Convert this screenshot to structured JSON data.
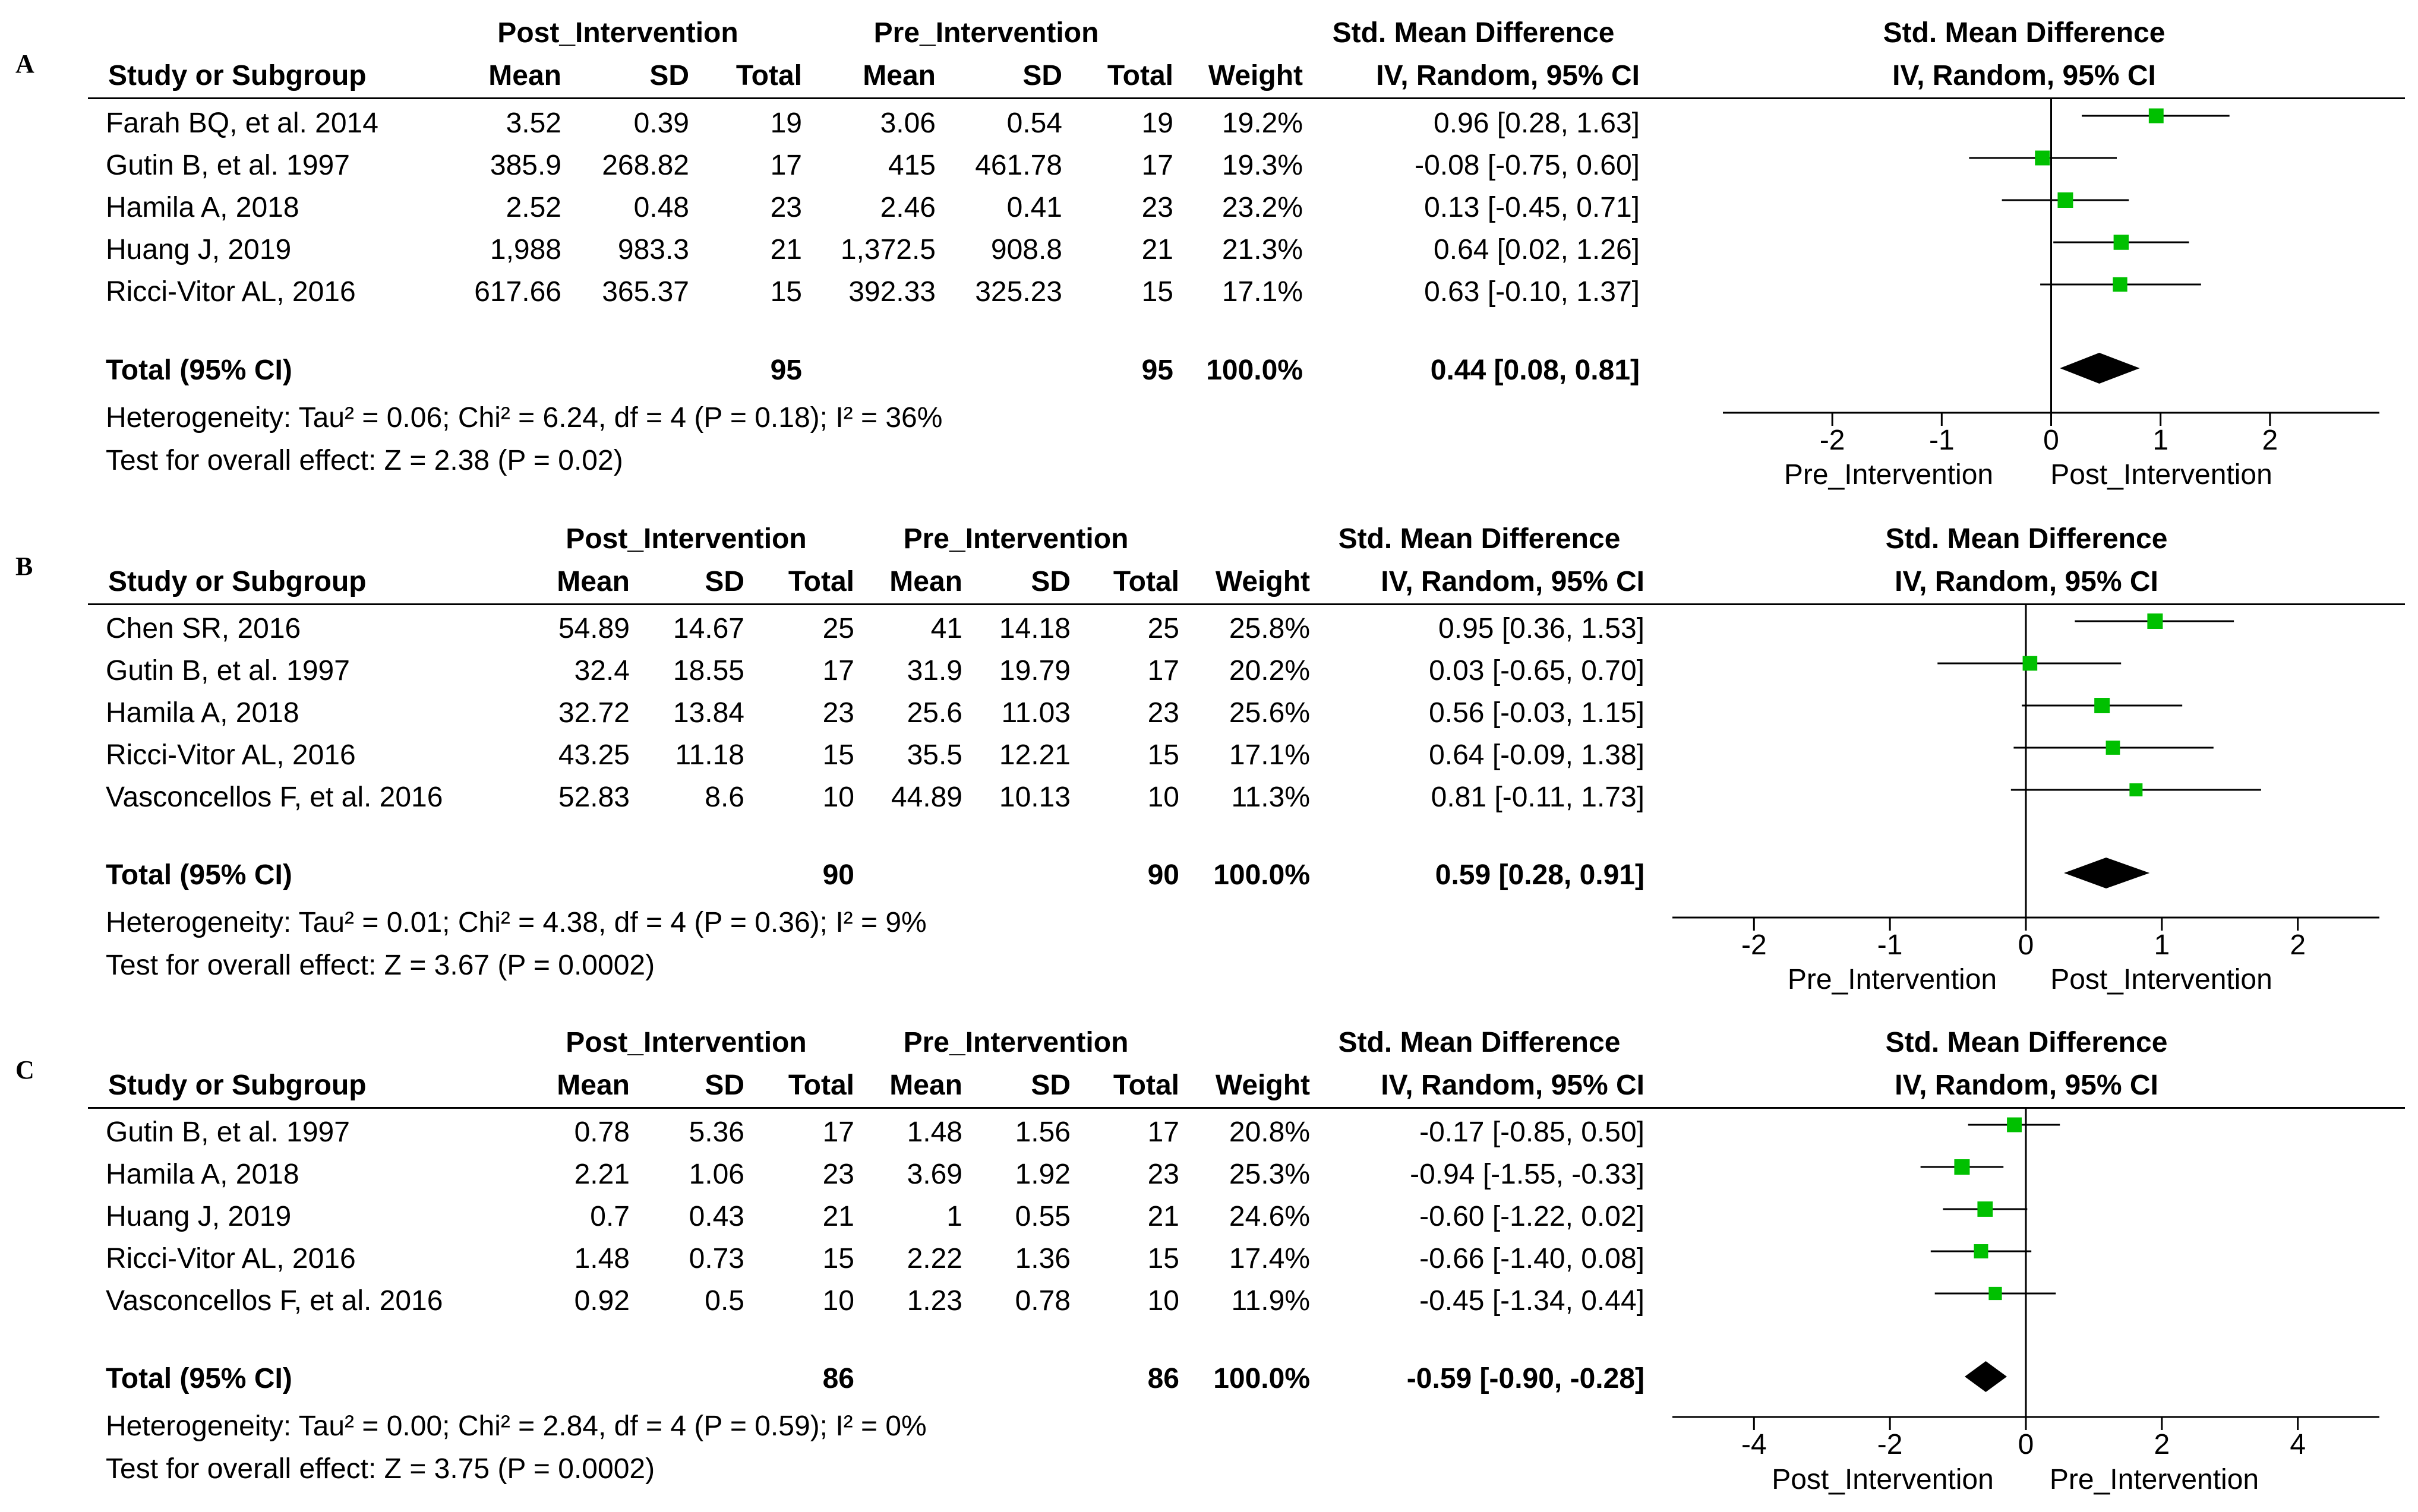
{
  "columns": {
    "study": "Study or Subgroup",
    "post_group": "Post_Intervention",
    "pre_group": "Pre_Intervention",
    "mean": "Mean",
    "sd": "SD",
    "total": "Total",
    "weight": "Weight",
    "smd_header": "Std. Mean Difference",
    "smd_method": "IV, Random, 95% CI"
  },
  "colors": {
    "marker": "#00c000",
    "diamond": "#000000",
    "line": "#000000"
  },
  "chart_data": [
    {
      "type": "table",
      "panel": "A",
      "studies": [
        {
          "name": "Farah BQ, et al. 2014",
          "post_mean": "3.52",
          "post_sd": "0.39",
          "post_total": "19",
          "pre_mean": "3.06",
          "pre_sd": "0.54",
          "pre_total": "19",
          "weight": "19.2%",
          "ci_text": "0.96 [0.28, 1.63]",
          "smd": 0.96,
          "lo": 0.28,
          "hi": 1.63,
          "w": 19.2
        },
        {
          "name": "Gutin B, et al. 1997",
          "post_mean": "385.9",
          "post_sd": "268.82",
          "post_total": "17",
          "pre_mean": "415",
          "pre_sd": "461.78",
          "pre_total": "17",
          "weight": "19.3%",
          "ci_text": "-0.08 [-0.75, 0.60]",
          "smd": -0.08,
          "lo": -0.75,
          "hi": 0.6,
          "w": 19.3
        },
        {
          "name": "Hamila A, 2018",
          "post_mean": "2.52",
          "post_sd": "0.48",
          "post_total": "23",
          "pre_mean": "2.46",
          "pre_sd": "0.41",
          "pre_total": "23",
          "weight": "23.2%",
          "ci_text": "0.13 [-0.45, 0.71]",
          "smd": 0.13,
          "lo": -0.45,
          "hi": 0.71,
          "w": 23.2
        },
        {
          "name": "Huang J, 2019",
          "post_mean": "1,988",
          "post_sd": "983.3",
          "post_total": "21",
          "pre_mean": "1,372.5",
          "pre_sd": "908.8",
          "pre_total": "21",
          "weight": "21.3%",
          "ci_text": "0.64 [0.02, 1.26]",
          "smd": 0.64,
          "lo": 0.02,
          "hi": 1.26,
          "w": 21.3
        },
        {
          "name": "Ricci-Vitor AL, 2016",
          "post_mean": "617.66",
          "post_sd": "365.37",
          "post_total": "15",
          "pre_mean": "392.33",
          "pre_sd": "325.23",
          "pre_total": "15",
          "weight": "17.1%",
          "ci_text": "0.63 [-0.10, 1.37]",
          "smd": 0.63,
          "lo": -0.1,
          "hi": 1.37,
          "w": 17.1
        }
      ],
      "total": {
        "label": "Total (95% CI)",
        "post_total": "95",
        "pre_total": "95",
        "weight": "100.0%",
        "ci_text": "0.44 [0.08, 0.81]",
        "smd": 0.44,
        "lo": 0.08,
        "hi": 0.81
      },
      "heterogeneity": "Heterogeneity: Tau² = 0.06; Chi² = 6.24, df = 4 (P = 0.18); I² = 36%",
      "overall_effect": "Test for overall effect: Z = 2.38 (P = 0.02)",
      "xlim": [
        -3,
        3
      ],
      "xticks": [
        -2,
        -1,
        0,
        1,
        2
      ],
      "xtick_labels": [
        "-2",
        "-1",
        "0",
        "1",
        "2"
      ],
      "left_label": "Pre_Intervention",
      "right_label": "Post_Intervention"
    },
    {
      "type": "table",
      "panel": "B",
      "studies": [
        {
          "name": "Chen SR, 2016",
          "post_mean": "54.89",
          "post_sd": "14.67",
          "post_total": "25",
          "pre_mean": "41",
          "pre_sd": "14.18",
          "pre_total": "25",
          "weight": "25.8%",
          "ci_text": "0.95 [0.36, 1.53]",
          "smd": 0.95,
          "lo": 0.36,
          "hi": 1.53,
          "w": 25.8
        },
        {
          "name": "Gutin B, et al. 1997",
          "post_mean": "32.4",
          "post_sd": "18.55",
          "post_total": "17",
          "pre_mean": "31.9",
          "pre_sd": "19.79",
          "pre_total": "17",
          "weight": "20.2%",
          "ci_text": "0.03 [-0.65, 0.70]",
          "smd": 0.03,
          "lo": -0.65,
          "hi": 0.7,
          "w": 20.2
        },
        {
          "name": "Hamila A, 2018",
          "post_mean": "32.72",
          "post_sd": "13.84",
          "post_total": "23",
          "pre_mean": "25.6",
          "pre_sd": "11.03",
          "pre_total": "23",
          "weight": "25.6%",
          "ci_text": "0.56 [-0.03, 1.15]",
          "smd": 0.56,
          "lo": -0.03,
          "hi": 1.15,
          "w": 25.6
        },
        {
          "name": "Ricci-Vitor AL, 2016",
          "post_mean": "43.25",
          "post_sd": "11.18",
          "post_total": "15",
          "pre_mean": "35.5",
          "pre_sd": "12.21",
          "pre_total": "15",
          "weight": "17.1%",
          "ci_text": "0.64 [-0.09, 1.38]",
          "smd": 0.64,
          "lo": -0.09,
          "hi": 1.38,
          "w": 17.1
        },
        {
          "name": "Vasconcellos F, et al. 2016",
          "post_mean": "52.83",
          "post_sd": "8.6",
          "post_total": "10",
          "pre_mean": "44.89",
          "pre_sd": "10.13",
          "pre_total": "10",
          "weight": "11.3%",
          "ci_text": "0.81 [-0.11, 1.73]",
          "smd": 0.81,
          "lo": -0.11,
          "hi": 1.73,
          "w": 11.3
        }
      ],
      "total": {
        "label": "Total (95% CI)",
        "post_total": "90",
        "pre_total": "90",
        "weight": "100.0%",
        "ci_text": "0.59 [0.28, 0.91]",
        "smd": 0.59,
        "lo": 0.28,
        "hi": 0.91
      },
      "heterogeneity": "Heterogeneity: Tau² = 0.01; Chi² = 4.38, df = 4 (P = 0.36); I² = 9%",
      "overall_effect": "Test for overall effect: Z = 3.67 (P = 0.0002)",
      "xlim": [
        -2.6,
        2.6
      ],
      "xticks": [
        -2,
        -1,
        0,
        1,
        2
      ],
      "xtick_labels": [
        "-2",
        "-1",
        "0",
        "1",
        "2"
      ],
      "left_label": "Pre_Intervention",
      "right_label": "Post_Intervention"
    },
    {
      "type": "table",
      "panel": "C",
      "studies": [
        {
          "name": "Gutin B, et al. 1997",
          "post_mean": "0.78",
          "post_sd": "5.36",
          "post_total": "17",
          "pre_mean": "1.48",
          "pre_sd": "1.56",
          "pre_total": "17",
          "weight": "20.8%",
          "ci_text": "-0.17 [-0.85, 0.50]",
          "smd": -0.17,
          "lo": -0.85,
          "hi": 0.5,
          "w": 20.8
        },
        {
          "name": "Hamila A, 2018",
          "post_mean": "2.21",
          "post_sd": "1.06",
          "post_total": "23",
          "pre_mean": "3.69",
          "pre_sd": "1.92",
          "pre_total": "23",
          "weight": "25.3%",
          "ci_text": "-0.94 [-1.55, -0.33]",
          "smd": -0.94,
          "lo": -1.55,
          "hi": -0.33,
          "w": 25.3
        },
        {
          "name": "Huang J, 2019",
          "post_mean": "0.7",
          "post_sd": "0.43",
          "post_total": "21",
          "pre_mean": "1",
          "pre_sd": "0.55",
          "pre_total": "21",
          "weight": "24.6%",
          "ci_text": "-0.60 [-1.22, 0.02]",
          "smd": -0.6,
          "lo": -1.22,
          "hi": 0.02,
          "w": 24.6
        },
        {
          "name": "Ricci-Vitor AL, 2016",
          "post_mean": "1.48",
          "post_sd": "0.73",
          "post_total": "15",
          "pre_mean": "2.22",
          "pre_sd": "1.36",
          "pre_total": "15",
          "weight": "17.4%",
          "ci_text": "-0.66 [-1.40, 0.08]",
          "smd": -0.66,
          "lo": -1.4,
          "hi": 0.08,
          "w": 17.4
        },
        {
          "name": "Vasconcellos F, et al. 2016",
          "post_mean": "0.92",
          "post_sd": "0.5",
          "post_total": "10",
          "pre_mean": "1.23",
          "pre_sd": "0.78",
          "pre_total": "10",
          "weight": "11.9%",
          "ci_text": "-0.45 [-1.34, 0.44]",
          "smd": -0.45,
          "lo": -1.34,
          "hi": 0.44,
          "w": 11.9
        }
      ],
      "total": {
        "label": "Total (95% CI)",
        "post_total": "86",
        "pre_total": "86",
        "weight": "100.0%",
        "ci_text": "-0.59 [-0.90, -0.28]",
        "smd": -0.59,
        "lo": -0.9,
        "hi": -0.28
      },
      "heterogeneity": "Heterogeneity: Tau² = 0.00; Chi² = 2.84, df = 4 (P = 0.59); I² = 0%",
      "overall_effect": "Test for overall effect: Z = 3.75 (P = 0.0002)",
      "xlim": [
        -5.2,
        5.2
      ],
      "xticks": [
        -4,
        -2,
        0,
        2,
        4
      ],
      "xtick_labels": [
        "-4",
        "-2",
        "0",
        "2",
        "4"
      ],
      "left_label": "Post_Intervention",
      "right_label": "Pre_Intervention"
    }
  ]
}
